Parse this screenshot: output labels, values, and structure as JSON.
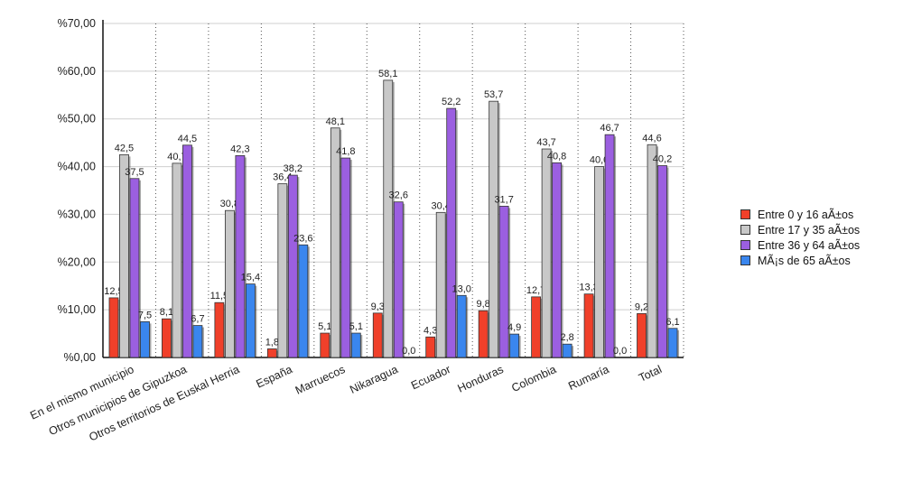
{
  "chart_data": {
    "type": "bar",
    "title": "",
    "xlabel": "",
    "ylabel": "",
    "ylim": [
      0,
      70
    ],
    "y_ticks": [
      "%0,00",
      "%10,00",
      "%20,00",
      "%30,00",
      "%40,00",
      "%50,00",
      "%60,00",
      "%70,00"
    ],
    "grid": true,
    "legend_position": "right",
    "categories": [
      "En el mismo municipio",
      "Otros municipios de Gipuzkoa",
      "Otros territorios de Euskal Herria",
      "España",
      "Marruecos",
      "Nikaragua",
      "Ecuador",
      "Honduras",
      "Colombia",
      "Rumaría",
      "Total"
    ],
    "series": [
      {
        "name": "Entre 0 y 16 aÃ±os",
        "color": "#f0402a",
        "values": [
          12.5,
          8.1,
          11.5,
          1.8,
          5.1,
          9.3,
          4.3,
          9.8,
          12.7,
          13.3,
          9.2
        ],
        "labels": [
          "12,5",
          "8,1",
          "11,5",
          "1,8",
          "5,1",
          "9,3",
          "4,3",
          "9,8",
          "12,7",
          "13,3",
          "9,2"
        ]
      },
      {
        "name": "Entre 17 y 35 aÃ±os",
        "color": "#c8c8c8",
        "values": [
          42.5,
          40.7,
          30.8,
          36.4,
          48.1,
          58.1,
          30.4,
          53.7,
          43.7,
          40.0,
          44.6
        ],
        "labels": [
          "42,5",
          "40,7",
          "30,8",
          "36,4",
          "48,1",
          "58,1",
          "30,4",
          "53,7",
          "43,7",
          "40,0",
          "44,6"
        ]
      },
      {
        "name": "Entre 36 y 64 aÃ±os",
        "color": "#9b5fe0",
        "values": [
          37.5,
          44.5,
          42.3,
          38.2,
          41.8,
          32.6,
          52.2,
          31.7,
          40.8,
          46.7,
          40.2
        ],
        "labels": [
          "37,5",
          "44,5",
          "42,3",
          "38,2",
          "41,8",
          "32,6",
          "52,2",
          "31,7",
          "40,8",
          "46,7",
          "40,2"
        ]
      },
      {
        "name": "MÃ¡s de 65 aÃ±os",
        "color": "#3a86ee",
        "values": [
          7.5,
          6.7,
          15.4,
          23.6,
          5.1,
          0.0,
          13.0,
          4.9,
          2.8,
          0.0,
          6.1
        ],
        "labels": [
          "7,5",
          "6,7",
          "15,4",
          "23,6",
          "5,1",
          "0,0",
          "13,0",
          "4,9",
          "2,8",
          "0,0",
          "6,1"
        ]
      }
    ]
  }
}
